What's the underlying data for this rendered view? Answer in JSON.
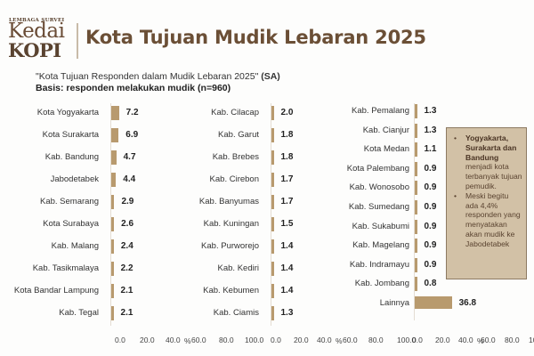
{
  "logo": {
    "top_text": "LEMBAGA SURVEI",
    "line1": "Kedai",
    "line2": "KOPI"
  },
  "header": {
    "title": "Kota Tujuan Mudik Lebaran 2025"
  },
  "subtitle": {
    "question": "\"Kota Tujuan Responden dalam Mudik Lebaran 2025\"",
    "type": "(SA)",
    "basis": "Basis: responden melakukan mudik (n=960)"
  },
  "colors": {
    "bar": "#b89a6e",
    "title": "#6b4f36",
    "note_bg": "#d2c1a6"
  },
  "axis": {
    "ticks": [
      "0.0",
      "20.0",
      "40.0",
      "60.0",
      "80.0",
      "100.0"
    ],
    "unit": "%"
  },
  "chart_data": {
    "type": "bar",
    "orientation": "horizontal",
    "title": "Kota Tujuan Mudik Lebaran 2025",
    "subtitle": "\"Kota Tujuan Responden dalam Mudik Lebaran 2025\" (SA) — Basis: responden melakukan mudik (n=960)",
    "xlabel": "%",
    "xlim": [
      0,
      100
    ],
    "grid": false,
    "categories": [
      "Kota Yogyakarta",
      "Kota Surakarta",
      "Kab. Bandung",
      "Jabodetabek",
      "Kab. Semarang",
      "Kota Surabaya",
      "Kab. Malang",
      "Kab. Tasikmalaya",
      "Kota Bandar Lampung",
      "Kab. Tegal",
      "Kab. Cilacap",
      "Kab. Garut",
      "Kab. Brebes",
      "Kab. Cirebon",
      "Kab. Banyumas",
      "Kab. Kuningan",
      "Kab. Purworejo",
      "Kab. Kediri",
      "Kab. Kebumen",
      "Kab. Ciamis",
      "Kab. Pemalang",
      "Kab. Cianjur",
      "Kota Medan",
      "Kota Palembang",
      "Kab. Wonosobo",
      "Kab. Sumedang",
      "Kab. Sukabumi",
      "Kab. Magelang",
      "Kab. Indramayu",
      "Kab. Jombang",
      "Lainnya"
    ],
    "values": [
      7.2,
      6.9,
      4.7,
      4.4,
      2.9,
      2.6,
      2.4,
      2.2,
      2.1,
      2.1,
      2.0,
      1.8,
      1.8,
      1.7,
      1.7,
      1.5,
      1.4,
      1.4,
      1.4,
      1.3,
      1.3,
      1.3,
      1.1,
      0.9,
      0.9,
      0.9,
      0.9,
      0.9,
      0.9,
      0.8,
      36.8
    ],
    "panels": [
      {
        "categories": [
          "Kota Yogyakarta",
          "Kota Surakarta",
          "Kab. Bandung",
          "Jabodetabek",
          "Kab. Semarang",
          "Kota Surabaya",
          "Kab. Malang",
          "Kab. Tasikmalaya",
          "Kota Bandar Lampung",
          "Kab. Tegal"
        ],
        "values": [
          7.2,
          6.9,
          4.7,
          4.4,
          2.9,
          2.6,
          2.4,
          2.2,
          2.1,
          2.1
        ]
      },
      {
        "categories": [
          "Kab. Cilacap",
          "Kab. Garut",
          "Kab. Brebes",
          "Kab. Cirebon",
          "Kab. Banyumas",
          "Kab. Kuningan",
          "Kab. Purworejo",
          "Kab. Kediri",
          "Kab. Kebumen",
          "Kab. Ciamis"
        ],
        "values": [
          2.0,
          1.8,
          1.8,
          1.7,
          1.7,
          1.5,
          1.4,
          1.4,
          1.4,
          1.3
        ]
      },
      {
        "categories": [
          "Kab. Pemalang",
          "Kab. Cianjur",
          "Kota Medan",
          "Kota Palembang",
          "Kab. Wonosobo",
          "Kab. Sumedang",
          "Kab. Sukabumi",
          "Kab. Magelang",
          "Kab. Indramayu",
          "Kab. Jombang",
          "Lainnya"
        ],
        "values": [
          1.3,
          1.3,
          1.1,
          0.9,
          0.9,
          0.9,
          0.9,
          0.9,
          0.9,
          0.8,
          36.8
        ]
      }
    ],
    "tick_labels": [
      "0.0",
      "20.0",
      "40.0",
      "60.0",
      "80.0",
      "100.0"
    ]
  },
  "note": {
    "items": [
      {
        "bold": "Yogyakarta, Surakarta dan Bandung",
        "text": " menjadi kota terbanyak tujuan pemudik."
      },
      {
        "bold": "",
        "text": "Meski begitu ada 4,4% responden yang menyatakan akan mudik ke Jabodetabek"
      }
    ],
    "bullet": "•"
  }
}
